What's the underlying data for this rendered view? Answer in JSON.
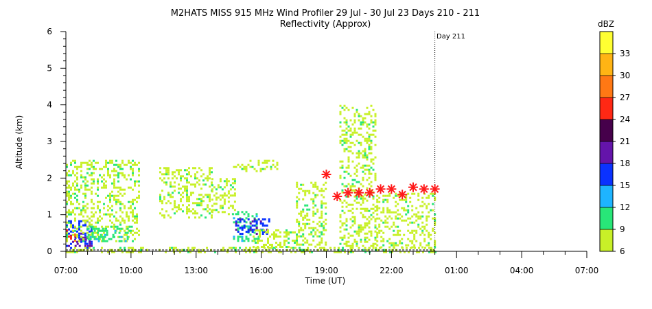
{
  "chart_data": {
    "type": "heatmap",
    "title": "M2HATS MISS 915 MHz Wind Profiler  29 Jul - 30 Jul 23 Days 210 - 211",
    "subtitle": "Reflectivity (Approx)",
    "xlabel": "Time (UT)",
    "ylabel": "Altitude (km)",
    "x_ticks": [
      "07:00",
      "10:00",
      "13:00",
      "16:00",
      "19:00",
      "22:00",
      "01:00",
      "04:00",
      "07:00"
    ],
    "x_range_hours": [
      0,
      24
    ],
    "y_ticks": [
      "0",
      "1",
      "2",
      "3",
      "4",
      "5",
      "6"
    ],
    "ylim": [
      0,
      6
    ],
    "day_marker": {
      "label": "Day 211",
      "x_hour": 17
    },
    "colorbar": {
      "unit": "dBZ",
      "ticks": [
        "6",
        "9",
        "12",
        "15",
        "18",
        "21",
        "24",
        "27",
        "30",
        "33"
      ],
      "range": [
        6,
        36
      ],
      "colors": [
        "#c8f028",
        "#28e678",
        "#1eb4ff",
        "#0a32ff",
        "#6414aa",
        "#46004b",
        "#ff2814",
        "#ff7814",
        "#ffb414",
        "#ffff32"
      ]
    },
    "markers": {
      "symbol": "asterisk",
      "color": "#ff1a1a",
      "points": [
        {
          "x": 12.0,
          "y": 2.1
        },
        {
          "x": 12.5,
          "y": 1.5
        },
        {
          "x": 13.0,
          "y": 1.6
        },
        {
          "x": 13.5,
          "y": 1.6
        },
        {
          "x": 14.0,
          "y": 1.6
        },
        {
          "x": 14.5,
          "y": 1.7
        },
        {
          "x": 15.0,
          "y": 1.7
        },
        {
          "x": 15.5,
          "y": 1.55
        },
        {
          "x": 16.0,
          "y": 1.75
        },
        {
          "x": 16.5,
          "y": 1.7
        },
        {
          "x": 17.0,
          "y": 1.7
        }
      ]
    },
    "echo_regions": [
      {
        "x0": 0.0,
        "x1": 17.0,
        "y0": 0.0,
        "y1": 0.12,
        "dbz": 7
      },
      {
        "x0": 0.0,
        "x1": 1.2,
        "y0": 0.1,
        "y1": 0.85,
        "dbz": 15
      },
      {
        "x0": 0.0,
        "x1": 0.4,
        "y0": 0.3,
        "y1": 0.6,
        "dbz": 24
      },
      {
        "x0": 0.4,
        "x1": 1.3,
        "y0": 0.15,
        "y1": 0.4,
        "dbz": 18
      },
      {
        "x0": 0.0,
        "x1": 3.4,
        "y0": 0.3,
        "y1": 2.5,
        "dbz": 7
      },
      {
        "x0": 1.0,
        "x1": 3.0,
        "y0": 0.25,
        "y1": 0.7,
        "dbz": 10
      },
      {
        "x0": 4.3,
        "x1": 6.7,
        "y0": 0.9,
        "y1": 2.3,
        "dbz": 8
      },
      {
        "x0": 6.7,
        "x1": 7.8,
        "y0": 1.0,
        "y1": 2.0,
        "dbz": 7
      },
      {
        "x0": 7.7,
        "x1": 8.9,
        "y0": 0.3,
        "y1": 1.1,
        "dbz": 9
      },
      {
        "x0": 7.8,
        "x1": 9.4,
        "y0": 0.5,
        "y1": 0.9,
        "dbz": 15
      },
      {
        "x0": 8.6,
        "x1": 10.6,
        "y0": 0.1,
        "y1": 0.6,
        "dbz": 8
      },
      {
        "x0": 7.7,
        "x1": 9.7,
        "y0": 2.2,
        "y1": 2.5,
        "dbz": 8
      },
      {
        "x0": 10.6,
        "x1": 12.0,
        "y0": 0.1,
        "y1": 1.9,
        "dbz": 7
      },
      {
        "x0": 12.6,
        "x1": 14.3,
        "y0": 0.1,
        "y1": 4.0,
        "dbz": 7
      },
      {
        "x0": 14.3,
        "x1": 17.0,
        "y0": 0.1,
        "y1": 1.6,
        "dbz": 7
      }
    ]
  }
}
